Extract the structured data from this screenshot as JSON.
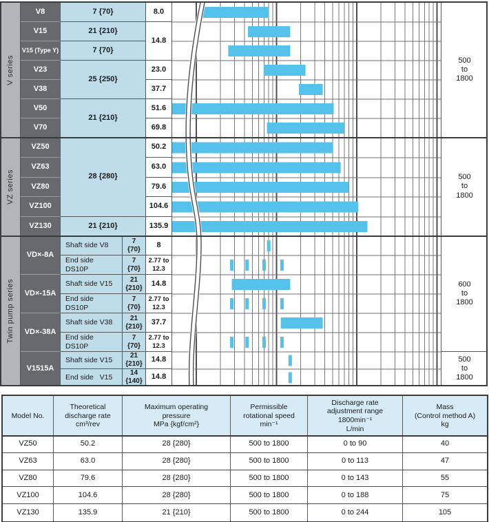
{
  "colors": {
    "bar_blue": "#55c2ec",
    "cell_light_blue": "#bedde9",
    "cell_dark_gray": "#68696c",
    "cell_series_gray": "#b3b5b8",
    "spec_header_blue": "#d6ebf5",
    "grid_minor": "#77787a",
    "grid_major": "#4d4e50",
    "border_dark": "#3a3b3d"
  },
  "gantt": {
    "series_groups": [
      {
        "label": "V series",
        "r0": 0,
        "r1": 6
      },
      {
        "label": "VZ series",
        "r0": 7,
        "r1": 11
      },
      {
        "label": "Twin pump series",
        "r0": 12,
        "r1": 19
      }
    ],
    "speed_groups": [
      {
        "label": "500\nto\n1800",
        "r0": 0,
        "r1": 6
      },
      {
        "label": "500\nto\n1800",
        "r0": 7,
        "r1": 11
      },
      {
        "label": "600\nto\n1800",
        "r0": 12,
        "r1": 17
      },
      {
        "label": "500\nto\n1800",
        "r0": 18,
        "r1": 19
      }
    ],
    "rows": [
      {
        "model": "V8",
        "pressure": "7 {70}",
        "pspan": 1,
        "rate": "8.0",
        "rspan": 1
      },
      {
        "model": "V15",
        "pressure": "21 {210}",
        "pspan": 1,
        "rate": "14.8",
        "rspan": 2
      },
      {
        "model": "V15 (Type Y)",
        "pressure": "7 {70}",
        "pspan": 1
      },
      {
        "model": "V23",
        "pressure": "25 {250}",
        "pspan": 2,
        "rate": "23.0",
        "rspan": 1
      },
      {
        "model": "V38",
        "rate": "37.7",
        "rspan": 1
      },
      {
        "model": "V50",
        "pressure": "21 {210}",
        "pspan": 2,
        "rate": "51.6",
        "rspan": 1
      },
      {
        "model": "V70",
        "rate": "69.8",
        "rspan": 1
      },
      {
        "model": "VZ50",
        "pressure": "28 {280}",
        "pspan": 4,
        "rate": "50.2",
        "rspan": 1
      },
      {
        "model": "VZ63",
        "rate": "63.0",
        "rspan": 1
      },
      {
        "model": "VZ80",
        "rate": "79.6",
        "rspan": 1
      },
      {
        "model": "VZ100",
        "rate": "104.6",
        "rspan": 1
      },
      {
        "model": "VZ130",
        "pressure": "21 {210}",
        "pspan": 1,
        "rate": "135.9",
        "rspan": 1
      },
      {
        "model": "VD×-8A",
        "mspan": 2,
        "desc": "Shaft side V8",
        "p2": "7\n{70}",
        "rate": "8"
      },
      {
        "desc": "End side   DS10P",
        "p2": "7\n{70}",
        "rate": "2.77 to\n12.3"
      },
      {
        "model": "VD×-15A",
        "mspan": 2,
        "desc": "Shaft side V15",
        "p2": "21\n{210}",
        "rate": "14.8"
      },
      {
        "desc": "End side   DS10P",
        "p2": "7\n{70}",
        "rate": "2.77 to\n12.3"
      },
      {
        "model": "VD×-38A",
        "mspan": 2,
        "desc": "Shaft side V38",
        "p2": "21\n{210}",
        "rate": "37.7"
      },
      {
        "desc": "End side   DS10P",
        "p2": "7\n{70}",
        "rate": "2.77 to\n12.3"
      },
      {
        "model": "V1515A",
        "mspan": 2,
        "desc": "Shaft side V15",
        "p2": "21\n{210}",
        "rate": "14.8"
      },
      {
        "desc": "End side   V15",
        "p2": "14\n{140}",
        "rate": "14.8"
      }
    ]
  },
  "chart_data": {
    "type": "bar",
    "orientation": "horizontal-range",
    "title": "Discharge rate range by pump model",
    "x_scale": "log",
    "unit": "cm3/rev (theoretical discharge rate)",
    "x_decade_gridlines": [
      1,
      10,
      100,
      1000
    ],
    "x_minor_gridlines_per_decade": [
      2,
      3,
      4,
      5,
      6,
      7,
      8,
      9
    ],
    "axis_break_at_left": true,
    "series": [
      {
        "label": "V8",
        "range": [
          1.2,
          8.0
        ],
        "speed": "500 to 1800"
      },
      {
        "label": "V15",
        "range": [
          4.4,
          14.8
        ],
        "speed": "500 to 1800"
      },
      {
        "label": "V15 (Type Y)",
        "range": [
          2.5,
          14.8
        ],
        "speed": "500 to 1800"
      },
      {
        "label": "V23",
        "range": [
          6.9,
          23.0
        ],
        "speed": "500 to 1800"
      },
      {
        "label": "V38",
        "range": [
          19.0,
          37.7
        ],
        "speed": "500 to 1800"
      },
      {
        "label": "V50",
        "range": [
          0,
          51.6
        ],
        "speed": "500 to 1800"
      },
      {
        "label": "V70",
        "range": [
          7.6,
          69.8
        ],
        "speed": "500 to 1800"
      },
      {
        "label": "VZ50",
        "range": [
          0,
          50.2
        ],
        "speed": "500 to 1800"
      },
      {
        "label": "VZ63",
        "range": [
          0,
          63.0
        ],
        "speed": "500 to 1800"
      },
      {
        "label": "VZ80",
        "range": [
          0,
          79.6
        ],
        "speed": "500 to 1800"
      },
      {
        "label": "VZ100",
        "range": [
          0,
          104.6
        ],
        "speed": "500 to 1800"
      },
      {
        "label": "VZ130",
        "range": [
          0,
          135.9
        ],
        "speed": "500 to 1800"
      },
      {
        "label": "VD×-8A Shaft side V8",
        "marks": [
          8.0
        ],
        "speed": "600 to 1800"
      },
      {
        "label": "VD×-8A End side DS10P",
        "marks": [
          2.77,
          4.3,
          7.0,
          11.7
        ],
        "speed": "600 to 1800"
      },
      {
        "label": "VD×-15A Shaft side V15",
        "range": [
          2.77,
          14.8
        ],
        "speed": "600 to 1800"
      },
      {
        "label": "VD×-15A End side DS10P",
        "marks": [
          2.77,
          4.3,
          7.0,
          11.7
        ],
        "speed": "600 to 1800"
      },
      {
        "label": "VD×-38A Shaft side V38",
        "range": [
          11.3,
          37.7
        ],
        "speed": "600 to 1800"
      },
      {
        "label": "VD×-38A End side DS10P",
        "marks": [
          2.77,
          4.3,
          7.0,
          11.7
        ],
        "speed": "600 to 1800"
      },
      {
        "label": "V1515A Shaft side V15",
        "marks": [
          14.8
        ],
        "speed": "500 to 1800"
      },
      {
        "label": "V1515A End side V15",
        "marks": [
          14.8
        ],
        "speed": "500 to 1800"
      }
    ]
  },
  "spec_table": {
    "headers": [
      "Model No.",
      "Theoretical\ndischarge rate\ncm³/rev",
      "Maximum operating\npressure\nMPa {kgf/cm²}",
      "Permissible\nrotational speed\nmin⁻¹",
      "Discharge rate\nadjustment range\n1800min⁻¹\nL/min",
      "Mass\n(Control method A)\nkg"
    ],
    "rows": [
      [
        "VZ50",
        "50.2",
        "28 {280}",
        "500 to 1800",
        "0 to  90",
        "40"
      ],
      [
        "VZ63",
        "63.0",
        "28 {280}",
        "500 to 1800",
        "0 to 113",
        "47"
      ],
      [
        "VZ80",
        "79.6",
        "28 {280}",
        "500 to 1800",
        "0 to 143",
        "55"
      ],
      [
        "VZ100",
        "104.6",
        "28 {280}",
        "500 to 1800",
        "0 to 188",
        "75"
      ],
      [
        "VZ130",
        "135.9",
        "21 {210}",
        "500 to 1800",
        "0 to 244",
        "105"
      ]
    ]
  }
}
